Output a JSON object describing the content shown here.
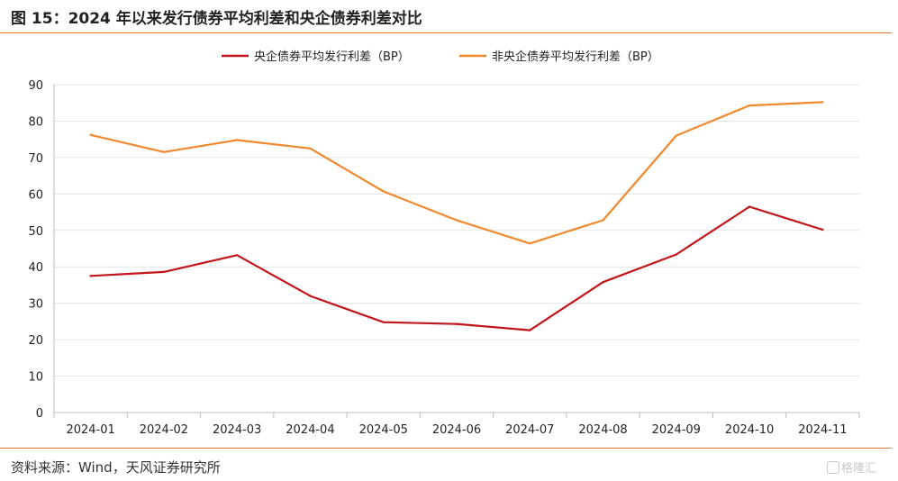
{
  "figure": {
    "title": "图 15：2024 年以来发行债券平均利差和央企债券利差对比",
    "source": "资料来源：Wind，天风证券研究所",
    "watermark": "格隆汇"
  },
  "chart_data": {
    "type": "line",
    "x": [
      "2024-01",
      "2024-02",
      "2024-03",
      "2024-04",
      "2024-05",
      "2024-06",
      "2024-07",
      "2024-08",
      "2024-09",
      "2024-10",
      "2024-11"
    ],
    "series": [
      {
        "name": "央企债券平均发行利差（BP）",
        "color": "#C0161B",
        "values": [
          37.5,
          38.6,
          43.2,
          32.0,
          24.8,
          24.3,
          22.6,
          35.8,
          43.4,
          56.5,
          50.2
        ]
      },
      {
        "name": "非央企债券平均发行利差（BP）",
        "color": "#F0892E",
        "values": [
          76.2,
          71.5,
          74.8,
          72.5,
          60.7,
          52.8,
          46.4,
          52.8,
          76.0,
          84.3,
          85.2
        ]
      }
    ],
    "yticks": [
      0,
      10,
      20,
      30,
      40,
      50,
      60,
      70,
      80,
      90
    ],
    "ylim": [
      0,
      90
    ],
    "grid": true,
    "legend_position": "top-center"
  }
}
